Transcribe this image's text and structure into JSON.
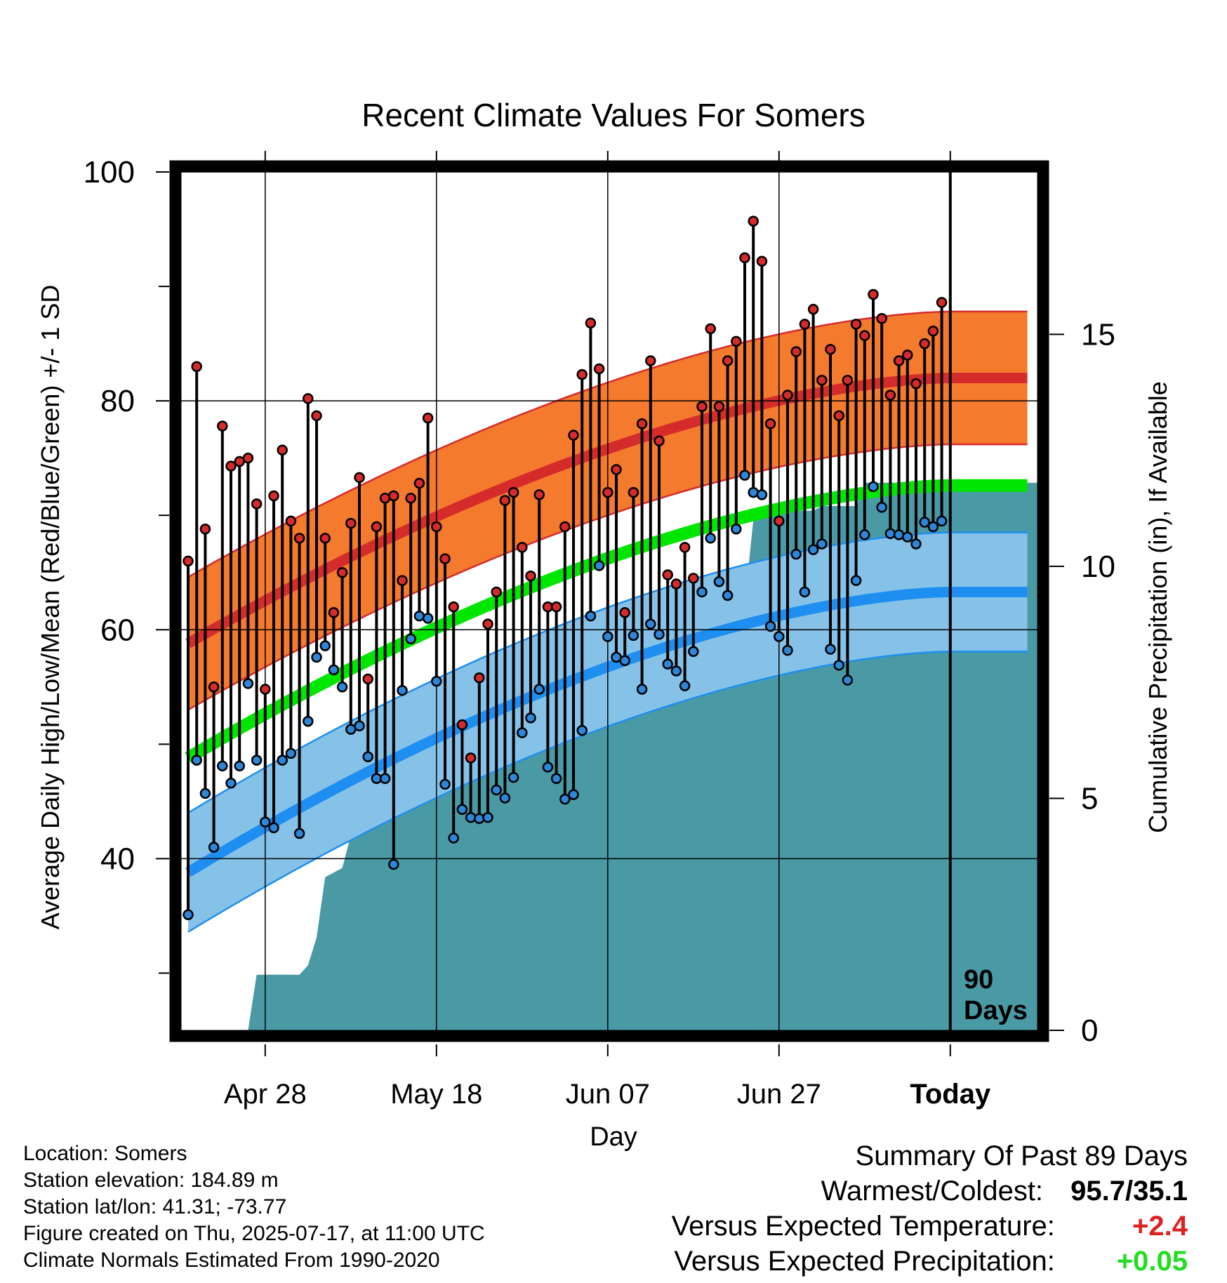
{
  "chart_data": {
    "type": "line",
    "title": "Recent Climate Values For Somers",
    "xlabel": "Day",
    "ylabel_left": "Average Daily High/Low/Mean (Red/Blue/Green) +/- 1 SD",
    "ylabel_right": "Cumulative Precipitation (in), If Available",
    "ylim": [
      25,
      100
    ],
    "precip_ylim": [
      0,
      18.5
    ],
    "left_ticks": [
      "100",
      "80",
      "60",
      "40"
    ],
    "right_ticks": [
      "15",
      "10",
      "5",
      "0"
    ],
    "x_ticks": [
      "Apr 28",
      "May 18",
      "Jun 07",
      "Jun 27",
      "Today"
    ],
    "days_label": [
      "90",
      "Days"
    ],
    "normals": {
      "high_mean_start": 58.8,
      "high_mean_end": 82.0,
      "low_mean_start": 38.8,
      "low_mean_end": 63.3,
      "mean_start": 48.8,
      "mean_end": 72.6,
      "high_sd": 5.8,
      "low_sd": 5.2
    },
    "daily_high": [
      66,
      83,
      68.8,
      55,
      77.8,
      74.3,
      74.7,
      75,
      71,
      54.8,
      71.7,
      75.7,
      69.5,
      68,
      80.2,
      78.7,
      68,
      61.5,
      65,
      69.3,
      73.3,
      55.7,
      69,
      71.5,
      71.7,
      64.3,
      71.5,
      72.8,
      78.5,
      69,
      66.2,
      62,
      51.7,
      48.8,
      55.8,
      60.5,
      63.3,
      71.3,
      72,
      67.2,
      64.7,
      71.8,
      62,
      62,
      69,
      77,
      82.3,
      86.8,
      82.8,
      72,
      74,
      61.5,
      72,
      78,
      83.5,
      76.5,
      64.8,
      64,
      67.2,
      64.5,
      79.5,
      86.3,
      79.5,
      83.5,
      85.2,
      92.5,
      95.7,
      92.2,
      78,
      69.5,
      80.5,
      84.3,
      86.7,
      88,
      81.8,
      84.5,
      78.7,
      81.8,
      86.7,
      85.7,
      89.3,
      87.2,
      80.5,
      83.5,
      84,
      81.5,
      85,
      86.1,
      88.6
    ],
    "daily_low": [
      35.1,
      48.6,
      45.7,
      41,
      48.1,
      46.6,
      48.1,
      55.3,
      48.6,
      43.2,
      42.7,
      48.6,
      49.2,
      42.2,
      52,
      57.6,
      58.6,
      56.5,
      55,
      51.3,
      51.6,
      48.9,
      47,
      47,
      39.5,
      54.7,
      59.2,
      61.2,
      61,
      55.5,
      46.5,
      41.8,
      44.3,
      43.6,
      43.5,
      43.6,
      46,
      45.3,
      47.1,
      51,
      52.3,
      54.8,
      48,
      47,
      45.2,
      45.6,
      51.2,
      61.2,
      65.6,
      59.4,
      57.6,
      57.3,
      59.5,
      54.8,
      60.5,
      59.6,
      57,
      56.4,
      55.1,
      58.1,
      63.3,
      68,
      64.2,
      63,
      68.8,
      73.5,
      72,
      71.8,
      60.3,
      59.4,
      58.2,
      66.6,
      63.3,
      67,
      67.5,
      58.3,
      56.9,
      55.6,
      64.3,
      68.3,
      72.5,
      70.7,
      68.4,
      68.3,
      68.1,
      67.5,
      69.4,
      69,
      69.5
    ],
    "precip_cumulative": [
      0,
      0,
      0,
      0,
      0,
      0,
      0,
      0,
      1.2,
      1.2,
      1.2,
      1.2,
      1.2,
      1.2,
      1.4,
      2,
      3.3,
      3.4,
      3.5,
      4.2,
      5.1,
      5.1,
      5.1,
      5.3,
      5.7,
      5.7,
      5.7,
      5.7,
      5.7,
      5.7,
      5.8,
      6.1,
      6.5,
      6.6,
      6.6,
      6.6,
      6.6,
      6.8,
      6.9,
      6.9,
      7.6,
      7.6,
      7.6,
      7.6,
      7.6,
      7.6,
      7.7,
      7.8,
      8.4,
      8.4,
      8.4,
      8.4,
      8.4,
      8.6,
      8.7,
      9,
      9.1,
      9.1,
      9.2,
      9.2,
      9.2,
      9.2,
      9.2,
      9.2,
      9.2,
      9.2,
      11,
      11.1,
      11.1,
      11.1,
      11.2,
      11.2,
      11.2,
      11.2,
      11.3,
      11.3,
      11.3,
      11.3,
      11.3,
      11.8,
      11.8,
      11.8,
      11.8,
      11.8,
      11.8,
      11.8,
      11.8,
      11.8,
      11.8,
      11.8
    ]
  },
  "info": {
    "location": "Location: Somers",
    "elevation": "Station elevation: 184.89 m",
    "latlon": "Station lat/lon: 41.31; -73.77",
    "created": "Figure created on Thu, 2025-07-17, at 11:00 UTC",
    "normals": "Climate Normals Estimated From 1990-2020"
  },
  "summary": {
    "heading": "Summary Of Past 89 Days",
    "warm_cold_label": "Warmest/Coldest:",
    "warm_cold_value": "95.7/35.1",
    "temp_label": "Versus Expected Temperature:",
    "temp_value": "+2.4",
    "temp_color": "#dd2222",
    "precip_label": "Versus Expected Precipitation:",
    "precip_value": "+0.05",
    "precip_color": "#22dd22"
  },
  "colors": {
    "high_band": "#f47a2e",
    "high_line": "#d62b2b",
    "low_band": "#86c2e8",
    "low_line": "#1e8ff0",
    "mean_line": "#00e600",
    "precip": "#4a9aa5",
    "high_dot": "#d62b2b",
    "low_dot": "#2e86d8"
  }
}
